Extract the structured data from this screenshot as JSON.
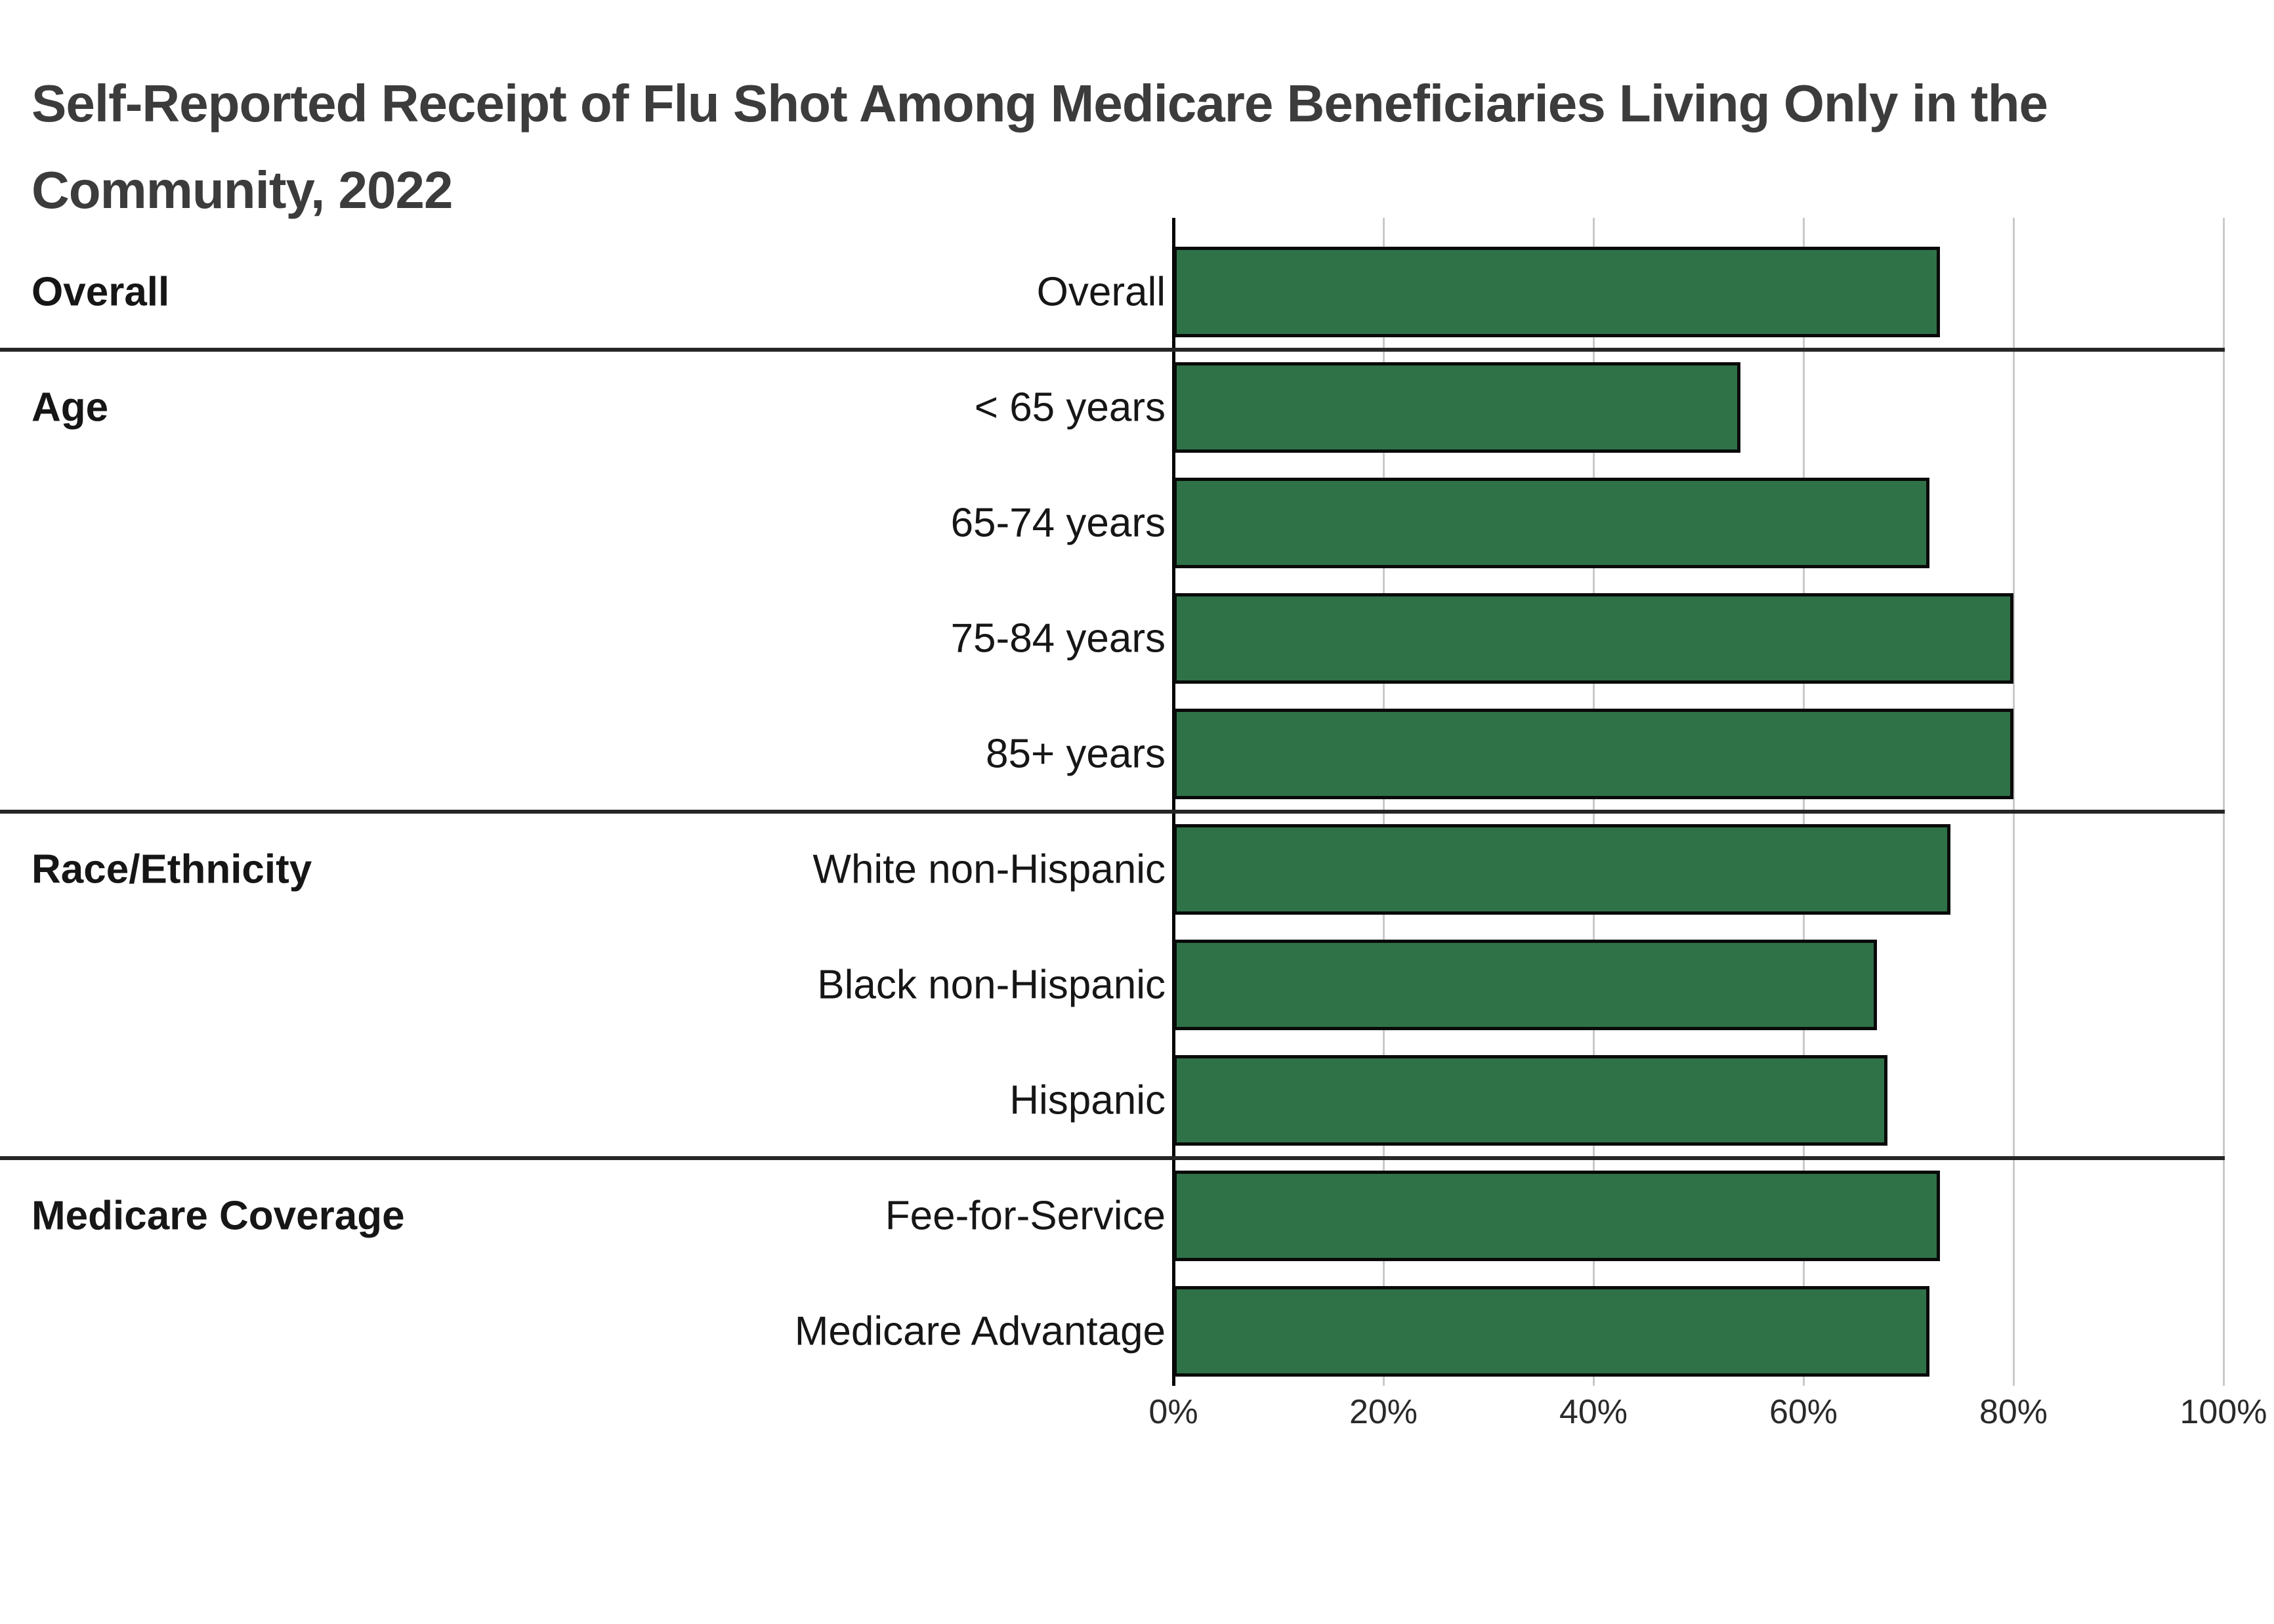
{
  "title": "Self-Reported Receipt of Flu Shot Among Medicare Beneficiaries Living Only in the Community, 2022",
  "title_lines": [
    "Self-Reported Receipt of Flu Shot Among Medicare Beneficiaries Living Only in the",
    "Community, 2022"
  ],
  "chart_data": {
    "type": "bar",
    "orientation": "horizontal",
    "title": "Self-Reported Receipt of Flu Shot Among Medicare Beneficiaries Living Only in the Community, 2022",
    "unit": "%",
    "xlim": [
      0,
      100
    ],
    "x_ticks": [
      "0%",
      "20%",
      "40%",
      "60%",
      "80%",
      "100%"
    ],
    "x_tick_values": [
      0,
      20,
      40,
      60,
      80,
      100
    ],
    "grid": "vertical-only",
    "legend": "none",
    "groups": [
      {
        "label": "Overall",
        "rows": [
          {
            "label": "Overall",
            "value": 73
          }
        ]
      },
      {
        "label": "Age",
        "rows": [
          {
            "label": "< 65 years",
            "value": 54
          },
          {
            "label": "65-74 years",
            "value": 72
          },
          {
            "label": "75-84 years",
            "value": 80
          },
          {
            "label": "85+ years",
            "value": 80
          }
        ]
      },
      {
        "label": "Race/Ethnicity",
        "rows": [
          {
            "label": "White non-Hispanic",
            "value": 74
          },
          {
            "label": "Black non-Hispanic",
            "value": 67
          },
          {
            "label": "Hispanic",
            "value": 68
          }
        ]
      },
      {
        "label": "Medicare Coverage",
        "rows": [
          {
            "label": "Fee-for-Service",
            "value": 73
          },
          {
            "label": "Medicare Advantage",
            "value": 72
          }
        ]
      }
    ],
    "colors": {
      "bar_fill": "#2f7248",
      "bar_border": "#0a0a0a",
      "gridline": "#c9c9c9",
      "axis_line": "#000000",
      "separator": "#262626",
      "title_text": "#3c3c3c",
      "label_text": "#161616",
      "tick_text": "#2a2a2a",
      "background": "#ffffff"
    }
  }
}
